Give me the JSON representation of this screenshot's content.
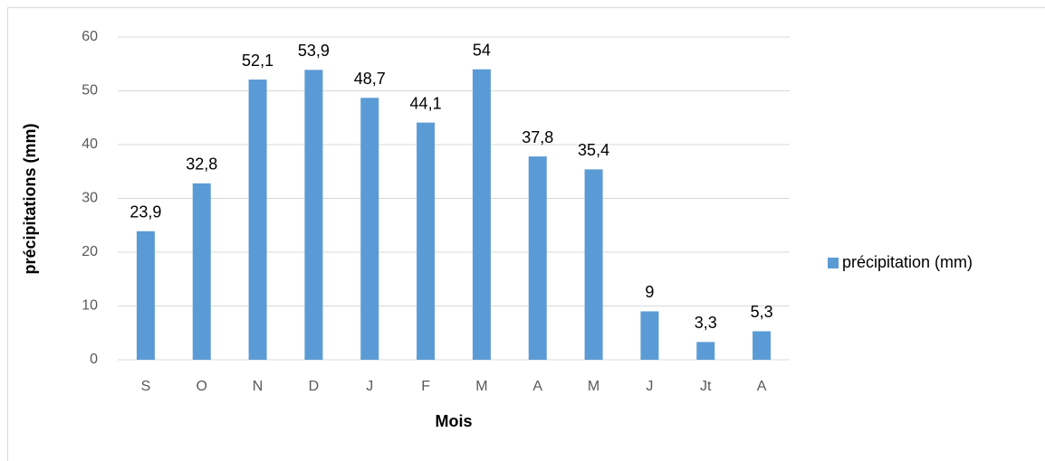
{
  "chart_data": {
    "type": "bar",
    "x_label": "Mois",
    "y_label": "précipitations (mm)",
    "categories": [
      "S",
      "O",
      "N",
      "D",
      "J",
      "F",
      "M",
      "A",
      "M",
      "J",
      "Jt",
      "A"
    ],
    "series": [
      {
        "name": "précipitation (mm)",
        "color": "#5b9bd5",
        "values": [
          23.9,
          32.8,
          52.1,
          53.9,
          48.7,
          44.1,
          54,
          37.8,
          35.4,
          9,
          3.3,
          5.3
        ],
        "value_labels": [
          "23,9",
          "32,8",
          "52,1",
          "53,9",
          "48,7",
          "44,1",
          "54",
          "37,8",
          "35,4",
          "9",
          "3,3",
          "5,3"
        ]
      }
    ],
    "ylim": [
      0,
      60
    ],
    "yticks": [
      0,
      10,
      20,
      30,
      40,
      50,
      60
    ],
    "grid": true,
    "legend": "right"
  }
}
